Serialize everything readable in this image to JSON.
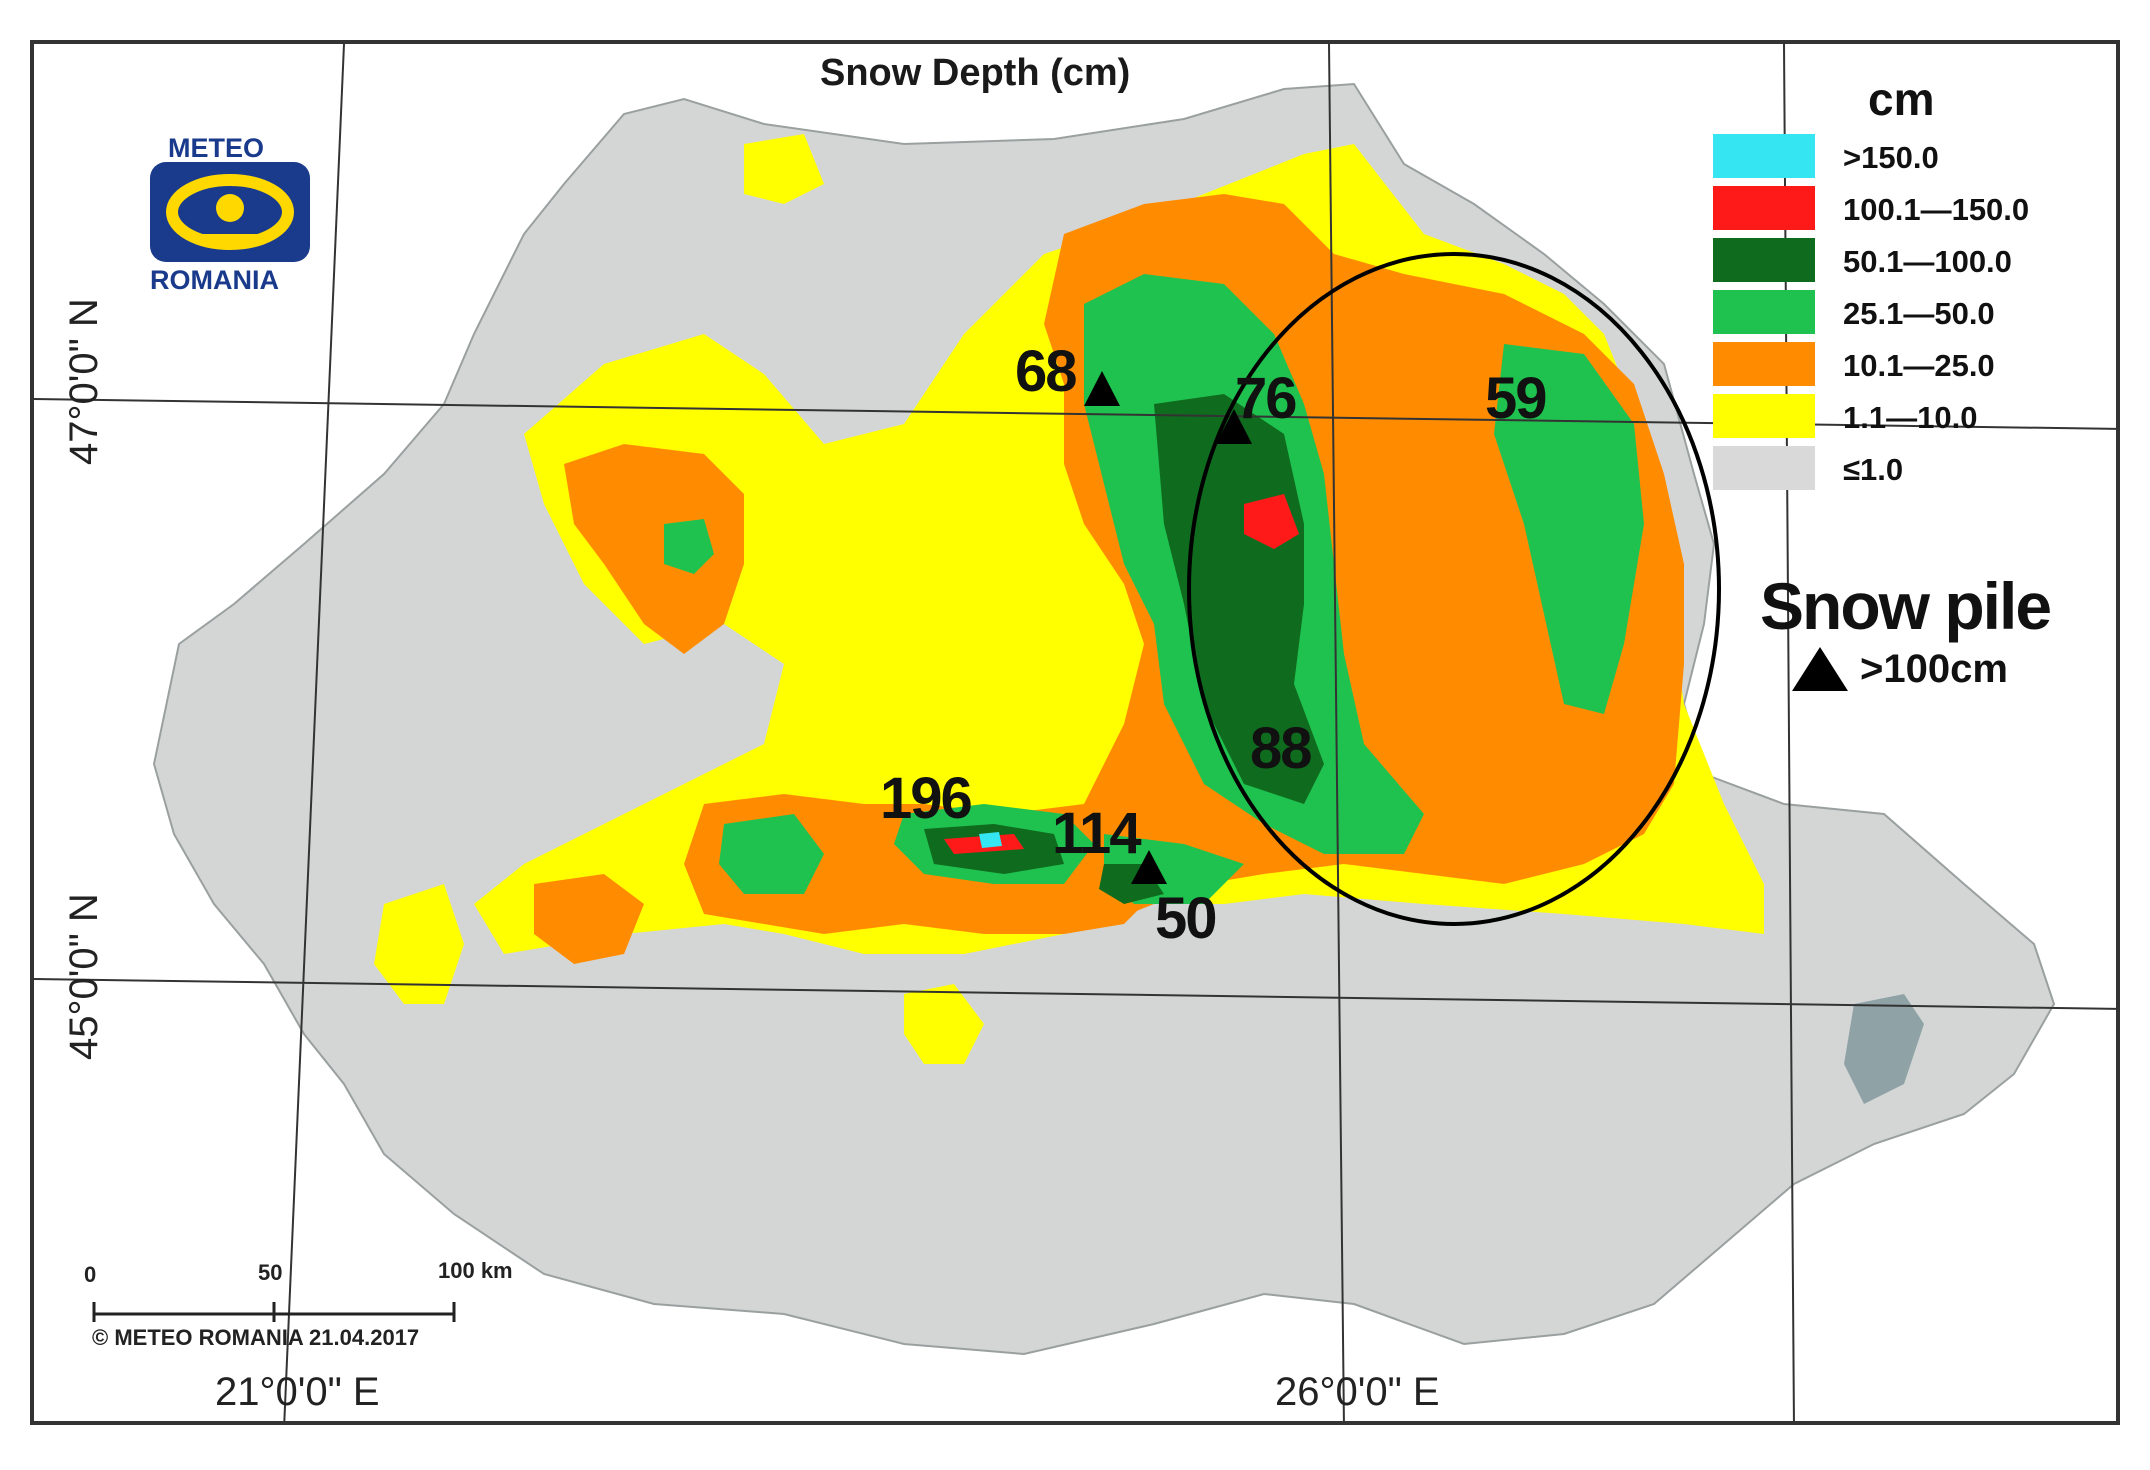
{
  "map": {
    "title": "Snow Depth (cm)",
    "logo": {
      "top": "METEO",
      "bottom": "ROMANIA"
    },
    "latitude_labels": [
      "47°0'0\" N",
      "45°0'0\" N"
    ],
    "longitude_labels": [
      "21°0'0\" E",
      "26°0'0\" E"
    ],
    "scale_bar": {
      "labels": [
        "0",
        "50",
        "100 km"
      ]
    },
    "copyright": "© METEO ROMANIA 21.04.2017"
  },
  "legend": {
    "unit": "cm",
    "classes": [
      {
        "label": ">150.0",
        "color": "#35e6f2"
      },
      {
        "label": "100.1—150.0",
        "color": "#ff1a1a"
      },
      {
        "label": "50.1—100.0",
        "color": "#0f6b1e"
      },
      {
        "label": "25.1—50.0",
        "color": "#1fc24f"
      },
      {
        "label": "10.1—25.0",
        "color": "#ff8c00"
      },
      {
        "label": "1.1—10.0",
        "color": "#ffff00"
      },
      {
        "label": "≤1.0",
        "color": "#d9d9d9"
      }
    ],
    "snow_pile": {
      "title": "Snow pile",
      "label": ">100cm"
    }
  },
  "values": {
    "v68": "68",
    "v76": "76",
    "v59": "59",
    "v88": "88",
    "v196": "196",
    "v114": "114",
    "v50": "50"
  }
}
